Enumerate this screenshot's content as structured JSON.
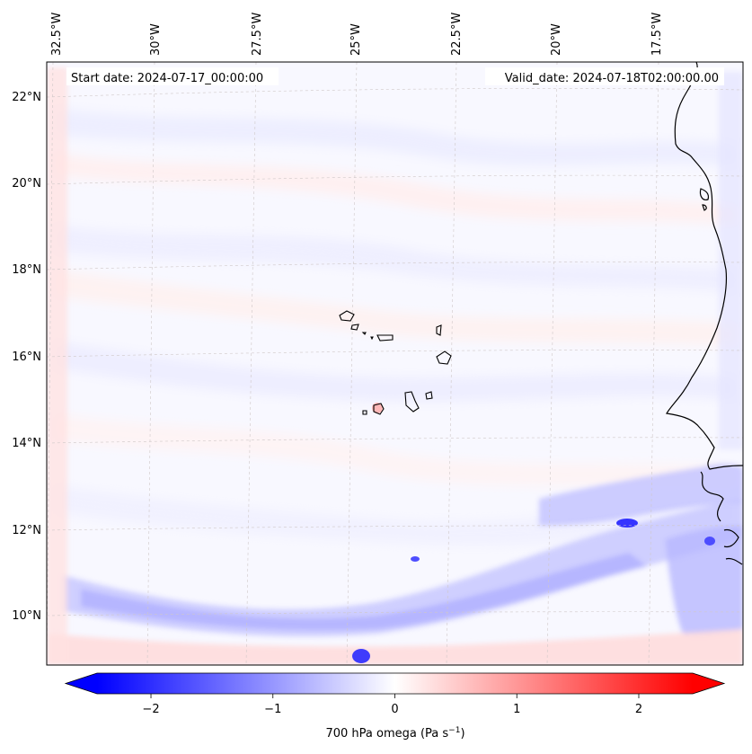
{
  "map": {
    "start_date_label": "Start date: 2024-07-17_00:00:00",
    "valid_date_label": "Valid_date: 2024-07-18T02:00:00.00",
    "longitude_labels": [
      "32.5°W",
      "30°W",
      "27.5°W",
      "25°W",
      "22.5°W",
      "20°W",
      "17.5°W"
    ],
    "latitude_labels": [
      "22°N",
      "20°N",
      "18°N",
      "16°N",
      "14°N",
      "12°N",
      "10°N"
    ]
  },
  "colorbar": {
    "label_main": "700 hPa omega (Pa s",
    "label_exp": "−1",
    "label_tail": ")",
    "ticks": [
      "−2",
      "−1",
      "0",
      "1",
      "2"
    ],
    "min": -2.7,
    "max": 2.7
  },
  "colors": {
    "negative": "#0000ff",
    "zero": "#ffffff",
    "positive": "#ff0000",
    "coast": "#000000",
    "grid": "#bfbfbf"
  }
}
